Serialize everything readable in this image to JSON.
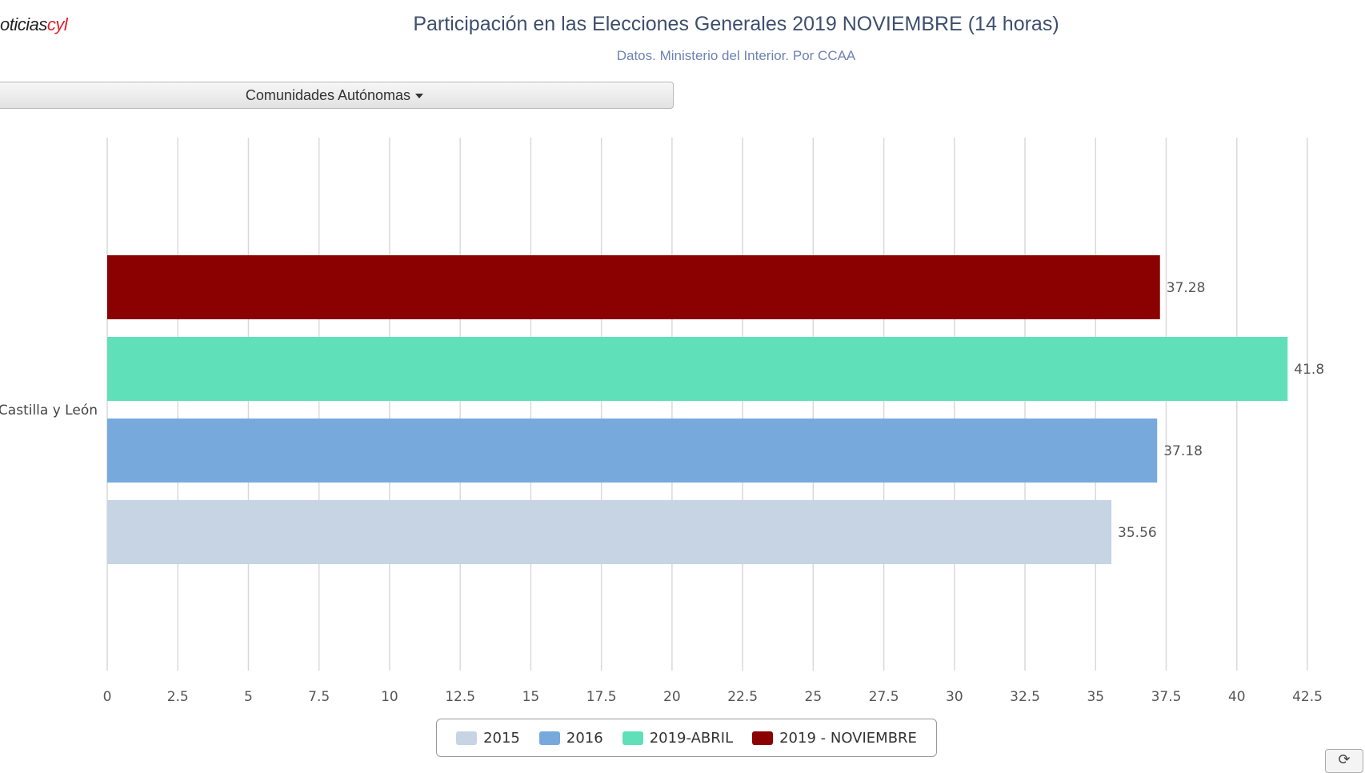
{
  "header": {
    "logo_prefix": "oticias",
    "logo_accent": "cyl",
    "title": "Participación en las Elecciones Generales 2019 NOVIEMBRE (14 horas)",
    "subtitle": "Datos. Ministerio del Interior. Por CCAA"
  },
  "controls": {
    "dropdown_label": "Comunidades Autónomas",
    "corner_button_icon": "refresh-icon",
    "corner_button_glyph": "⟳"
  },
  "chart_data": {
    "type": "bar",
    "orientation": "horizontal",
    "title": "Participación en las Elecciones Generales 2019 NOVIEMBRE (14 horas)",
    "subtitle": "Datos. Ministerio del Interior. Por CCAA",
    "categories": [
      "Castilla y León"
    ],
    "series": [
      {
        "name": "2015",
        "color": "#c6d4e4",
        "values": [
          35.56
        ]
      },
      {
        "name": "2016",
        "color": "#77a9dc",
        "values": [
          37.18
        ]
      },
      {
        "name": "2019-ABRIL",
        "color": "#5fe0b9",
        "values": [
          41.8
        ]
      },
      {
        "name": "2019 - NOVIEMBRE",
        "color": "#8b0000",
        "values": [
          37.28
        ]
      }
    ],
    "xlim": [
      0,
      42.5
    ],
    "x_ticks": [
      "0",
      "2.5",
      "5",
      "7.5",
      "10",
      "12.5",
      "15",
      "17.5",
      "20",
      "22.5",
      "25",
      "27.5",
      "30",
      "32.5",
      "35",
      "37.5",
      "40",
      "42.5"
    ],
    "grid": true,
    "data_labels": true,
    "legend_position": "bottom-center"
  }
}
